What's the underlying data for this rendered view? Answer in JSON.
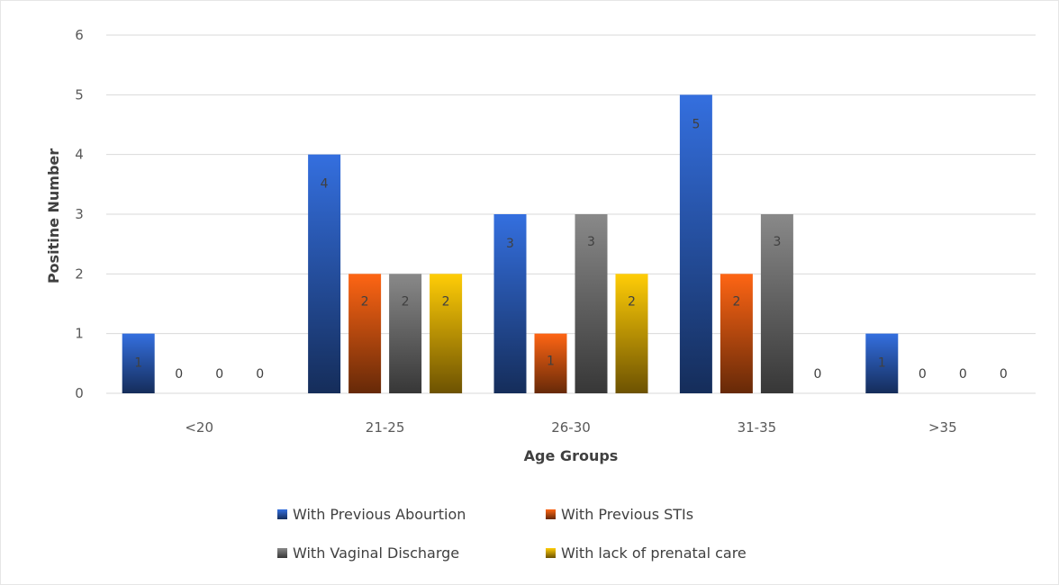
{
  "chart_data": {
    "type": "bar",
    "title": "",
    "xlabel": "Age Groups",
    "ylabel": "Positine Number",
    "ylim": [
      0,
      6
    ],
    "yticks": [
      0,
      1,
      2,
      3,
      4,
      5,
      6
    ],
    "grid": true,
    "legend_position": "bottom",
    "categories": [
      "<20",
      "21-25",
      "26-30",
      "31-35",
      ">35"
    ],
    "series": [
      {
        "name": "With Previous Abourtion",
        "color": "#2e63c7",
        "values": [
          1,
          4,
          3,
          5,
          1
        ]
      },
      {
        "name": "With Previous STIs",
        "color": "#e35a12",
        "values": [
          0,
          2,
          1,
          2,
          0
        ]
      },
      {
        "name": "With Vaginal Discharge",
        "color": "#7a7a7a",
        "values": [
          0,
          2,
          3,
          3,
          0
        ]
      },
      {
        "name": "With lack of prenatal care",
        "color": "#f2b705",
        "values": [
          0,
          2,
          2,
          0,
          0
        ]
      }
    ]
  }
}
